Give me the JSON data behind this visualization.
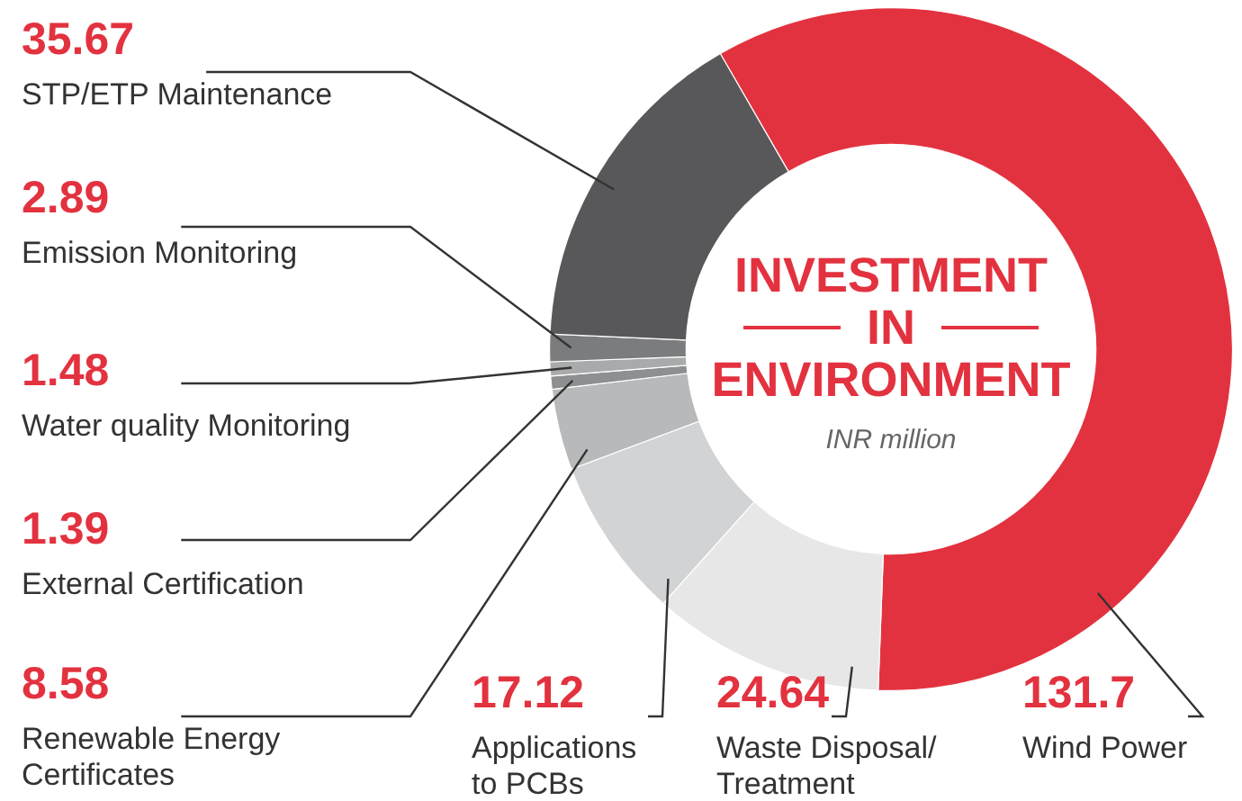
{
  "chart_data": {
    "type": "donut",
    "title": "INVESTMENT IN ENVIRONMENT",
    "subtitle": "INR million",
    "categories": [
      "Wind Power",
      "Waste Disposal/ Treatment",
      "Applications to PCBs",
      "Renewable Energy Certificates",
      "External Certification",
      "Water quality Monitoring",
      "Emission Monitoring",
      "STP/ETP Maintenance"
    ],
    "values": [
      131.7,
      24.64,
      17.12,
      8.58,
      1.39,
      1.48,
      2.89,
      35.67
    ],
    "colors": [
      "#e3323f",
      "#e7e7e8",
      "#d2d3d4",
      "#b8b9ba",
      "#8e8f90",
      "#a9aaab",
      "#7b7c7d",
      "#58585a"
    ],
    "data_labels": true
  }
}
